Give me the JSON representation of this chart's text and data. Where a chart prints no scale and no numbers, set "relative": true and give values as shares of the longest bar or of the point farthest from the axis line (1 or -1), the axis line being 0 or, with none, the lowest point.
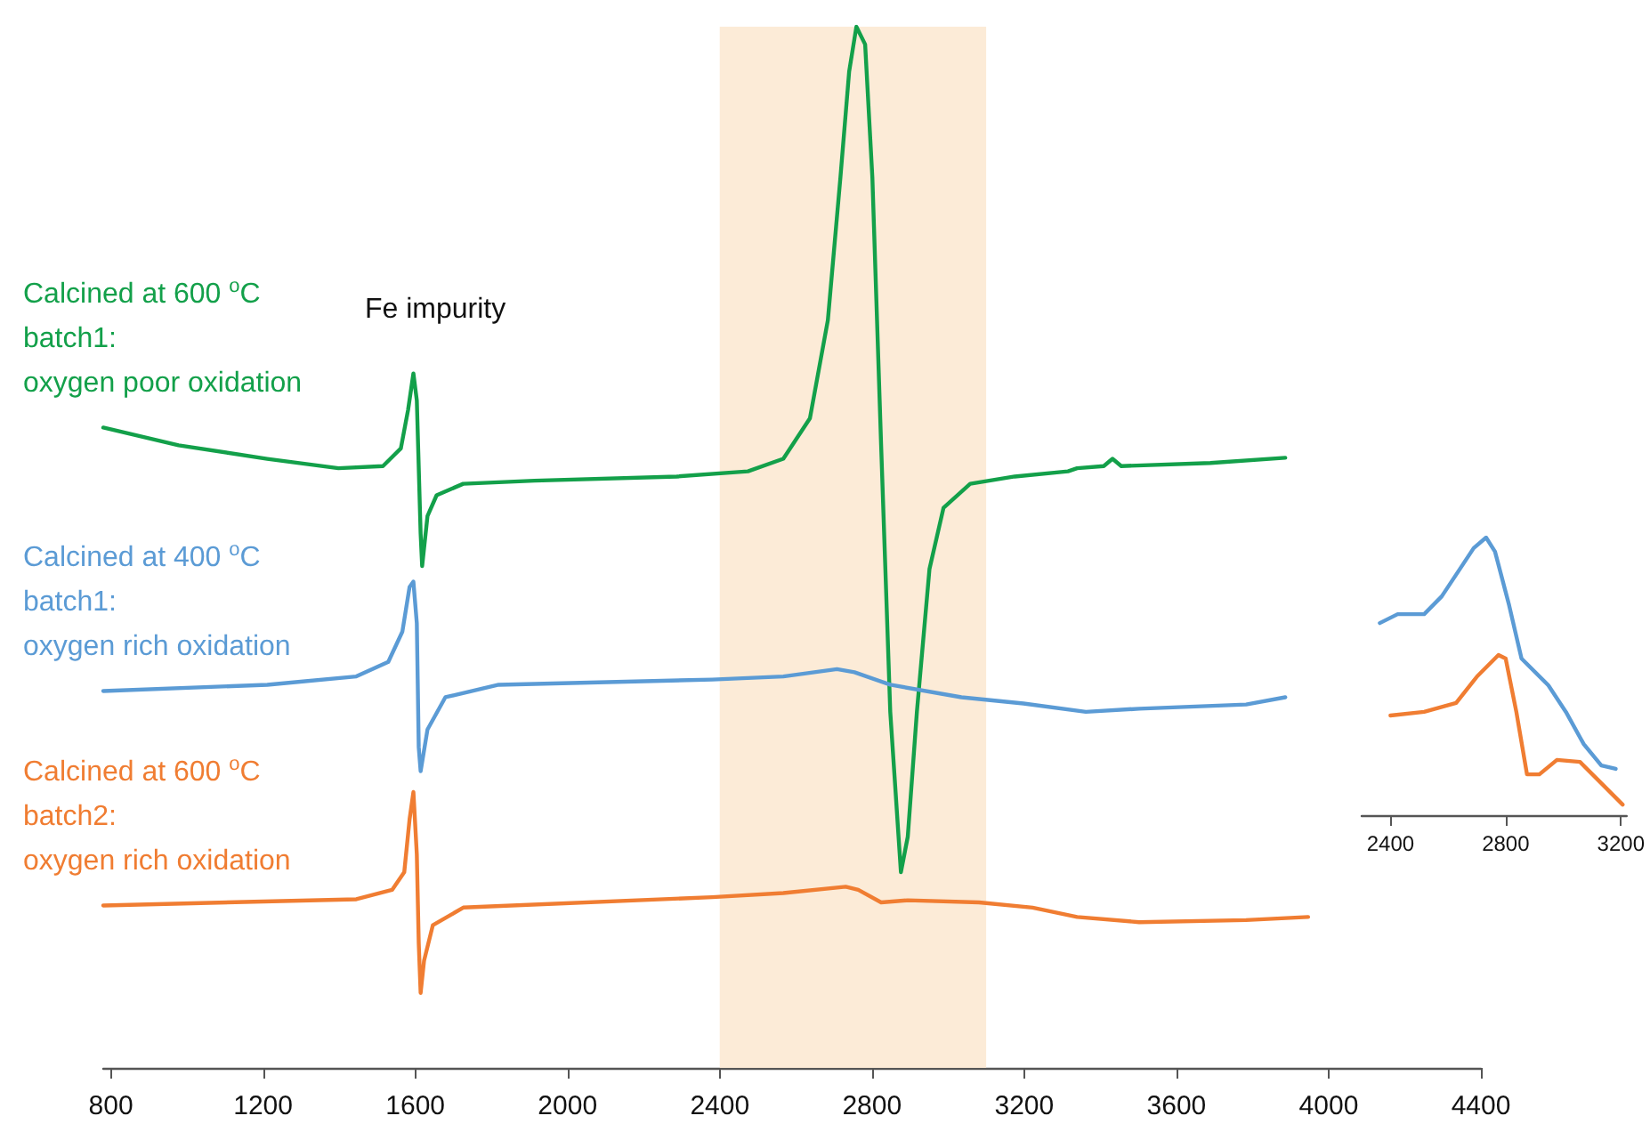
{
  "chart_data": [
    {
      "type": "line",
      "relative": true,
      "xlim": [
        780,
        4400
      ],
      "xticks": [
        800,
        1200,
        1600,
        2000,
        2400,
        2800,
        3200,
        3600,
        4000,
        4400
      ],
      "tick_labels": "x",
      "legend": false,
      "grid": false,
      "marker": "none",
      "line_style": "solid",
      "annotations": [
        "Fe impurity"
      ],
      "bands": [
        {
          "axis": "x",
          "from": 2400,
          "to": 3100,
          "color": "#fce8d0"
        }
      ],
      "series": [
        {
          "name": "Calcined at 600 $^{o}$C\nbatch1:\noxygen poor oxidation",
          "color": "#13a04a",
          "x": [
            780,
            978,
            1211,
            1398,
            1515,
            1562,
            1581,
            1595,
            1604,
            1614,
            1618,
            1632,
            1656,
            1726,
            1913,
            2287,
            2474,
            2567,
            2637,
            2684,
            2717,
            2740,
            2759,
            2782,
            2801,
            2824,
            2848,
            2876,
            2894,
            2918,
            2951,
            2988,
            3058,
            3175,
            3315,
            3339,
            3409,
            3432,
            3455,
            3689,
            3886
          ],
          "values": [
            0.615,
            0.598,
            0.585,
            0.576,
            0.578,
            0.595,
            0.632,
            0.667,
            0.641,
            0.513,
            0.482,
            0.53,
            0.55,
            0.561,
            0.564,
            0.568,
            0.573,
            0.585,
            0.624,
            0.718,
            0.855,
            0.957,
            1,
            0.983,
            0.855,
            0.598,
            0.342,
            0.188,
            0.222,
            0.342,
            0.479,
            0.538,
            0.561,
            0.568,
            0.573,
            0.576,
            0.578,
            0.585,
            0.578,
            0.581,
            0.586
          ]
        },
        {
          "name": "Calcined at 400 $^{o}$C\nbatch1:\noxygen rich oxidation",
          "color": "#5b9bd5",
          "x": [
            780,
            1211,
            1445,
            1529,
            1566,
            1585,
            1595,
            1604,
            1609,
            1614,
            1632,
            1679,
            1819,
            2380,
            2567,
            2708,
            2754,
            2848,
            3035,
            3198,
            3362,
            3502,
            3783,
            3886
          ],
          "values": [
            0.362,
            0.368,
            0.376,
            0.39,
            0.419,
            0.462,
            0.467,
            0.427,
            0.308,
            0.285,
            0.325,
            0.356,
            0.368,
            0.373,
            0.376,
            0.383,
            0.38,
            0.368,
            0.356,
            0.35,
            0.342,
            0.345,
            0.349,
            0.356
          ]
        },
        {
          "name": "Calcined at 600 $^{o}$C\nbatch2:\noxygen rich oxidation",
          "color": "#f07d32",
          "x": [
            780,
            1445,
            1539,
            1571,
            1585,
            1595,
            1604,
            1609,
            1614,
            1623,
            1646,
            1726,
            2380,
            2567,
            2731,
            2764,
            2824,
            2894,
            3081,
            3222,
            3339,
            3502,
            3783,
            3946
          ],
          "values": [
            0.156,
            0.162,
            0.171,
            0.188,
            0.239,
            0.265,
            0.205,
            0.12,
            0.072,
            0.103,
            0.137,
            0.154,
            0.164,
            0.168,
            0.174,
            0.171,
            0.159,
            0.161,
            0.159,
            0.154,
            0.145,
            0.14,
            0.142,
            0.145
          ]
        }
      ]
    },
    {
      "type": "line",
      "relative": true,
      "xlim": [
        2300,
        3220
      ],
      "xticks": [
        2400,
        2800,
        3200
      ],
      "tick_labels": "x",
      "legend": false,
      "grid": false,
      "marker": "none",
      "line_style": "solid",
      "series": [
        {
          "color": "#5b9bd5",
          "x": [
            2363,
            2425,
            2517,
            2578,
            2640,
            2689,
            2732,
            2763,
            2812,
            2855,
            2948,
            3009,
            3071,
            3132,
            3182
          ],
          "values": [
            0.692,
            0.724,
            0.724,
            0.788,
            0.885,
            0.962,
            1,
            0.949,
            0.756,
            0.564,
            0.468,
            0.372,
            0.256,
            0.179,
            0.167
          ]
        },
        {
          "color": "#f07d32",
          "x": [
            2400,
            2517,
            2628,
            2701,
            2775,
            2800,
            2837,
            2874,
            2917,
            2978,
            3058,
            3132,
            3206
          ],
          "values": [
            0.359,
            0.372,
            0.404,
            0.5,
            0.577,
            0.564,
            0.372,
            0.147,
            0.147,
            0.199,
            0.192,
            0.115,
            0.038
          ]
        }
      ]
    }
  ]
}
